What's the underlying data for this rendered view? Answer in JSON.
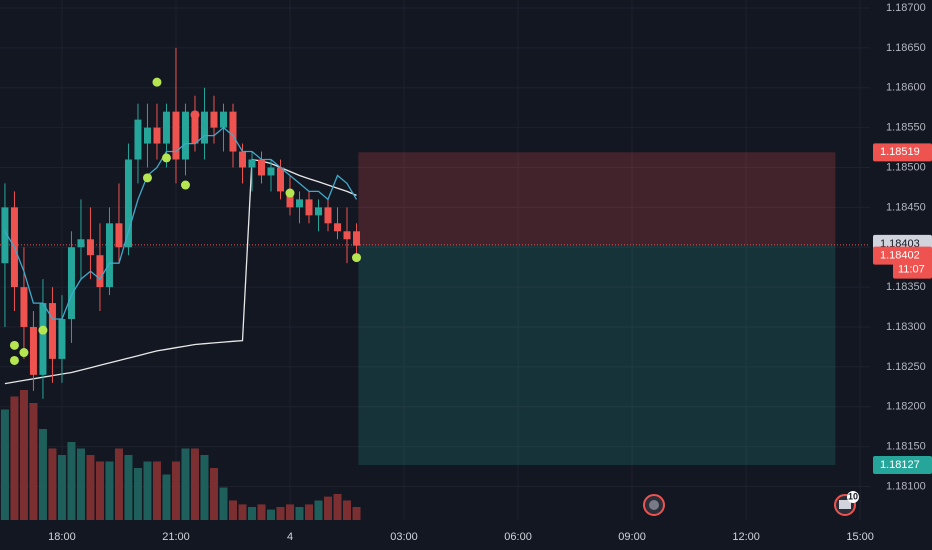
{
  "chart_data": {
    "type": "candlestick",
    "up_color": "#26a69a",
    "down_color": "#ef5350",
    "volume_up_color": "#1f5f5b",
    "volume_down_color": "#7b2f31",
    "x": [
      16.5,
      16.75,
      17,
      17.25,
      17.5,
      17.75,
      18,
      18.25,
      18.5,
      18.75,
      19,
      19.25,
      19.5,
      19.75,
      20,
      20.25,
      20.5,
      20.75,
      21,
      21.25,
      21.5,
      21.75,
      22,
      22.25,
      22.5,
      22.75,
      23,
      23.25,
      23.5,
      23.75,
      24,
      24.25,
      24.5,
      24.75,
      25,
      25.25,
      25.5,
      25.75
    ],
    "open": [
      1.1838,
      1.1845,
      1.1835,
      1.183,
      1.1824,
      1.1833,
      1.1826,
      1.1831,
      1.184,
      1.1841,
      1.1839,
      1.1835,
      1.1843,
      1.184,
      1.1851,
      1.1853,
      1.1855,
      1.1853,
      1.1857,
      1.1851,
      1.1857,
      1.1853,
      1.1857,
      1.1855,
      1.1857,
      1.1852,
      1.185,
      1.1851,
      1.1849,
      1.185,
      1.1847,
      1.1845,
      1.1846,
      1.1844,
      1.1845,
      1.1843,
      1.1842,
      1.1842
    ],
    "high": [
      1.1848,
      1.1847,
      1.184,
      1.1832,
      1.1836,
      1.1835,
      1.1834,
      1.1842,
      1.1846,
      1.1845,
      1.1843,
      1.1845,
      1.1848,
      1.1853,
      1.1858,
      1.1858,
      1.1858,
      1.1858,
      1.1865,
      1.1858,
      1.1859,
      1.186,
      1.1859,
      1.1858,
      1.1858,
      1.1853,
      1.1852,
      1.1852,
      1.1851,
      1.1851,
      1.1849,
      1.1847,
      1.1847,
      1.1846,
      1.1846,
      1.1845,
      1.1845,
      1.1843
    ],
    "low": [
      1.183,
      1.1832,
      1.1826,
      1.1822,
      1.1821,
      1.1823,
      1.1823,
      1.1828,
      1.1836,
      1.1836,
      1.1832,
      1.1834,
      1.1838,
      1.1839,
      1.1848,
      1.185,
      1.1851,
      1.185,
      1.1848,
      1.1849,
      1.1852,
      1.1851,
      1.1853,
      1.1852,
      1.185,
      1.1848,
      1.1847,
      1.1848,
      1.1847,
      1.1846,
      1.1844,
      1.1843,
      1.1843,
      1.1842,
      1.1842,
      1.1841,
      1.1838,
      1.1839
    ],
    "close": [
      1.1845,
      1.1835,
      1.183,
      1.1824,
      1.1833,
      1.1826,
      1.1831,
      1.184,
      1.1841,
      1.1839,
      1.1835,
      1.1843,
      1.184,
      1.1851,
      1.1856,
      1.1855,
      1.1853,
      1.1857,
      1.1851,
      1.1857,
      1.1853,
      1.1857,
      1.1855,
      1.1857,
      1.1852,
      1.185,
      1.1851,
      1.1849,
      1.185,
      1.1847,
      1.1845,
      1.1846,
      1.1844,
      1.1845,
      1.1843,
      1.1842,
      1.1841,
      1.18402
    ],
    "volume": [
      85,
      95,
      100,
      90,
      70,
      55,
      50,
      60,
      55,
      50,
      45,
      45,
      55,
      50,
      40,
      45,
      45,
      35,
      45,
      55,
      55,
      50,
      40,
      25,
      15,
      12,
      10,
      12,
      8,
      10,
      12,
      10,
      12,
      15,
      18,
      20,
      15,
      10
    ],
    "ema": {
      "color": "#3fa9c9",
      "values": [
        1.1842,
        1.184,
        1.1837,
        1.1833,
        1.1833,
        1.1831,
        1.1831,
        1.1834,
        1.1836,
        1.1837,
        1.1836,
        1.1838,
        1.1838,
        1.1842,
        1.1846,
        1.1849,
        1.185,
        1.1852,
        1.1852,
        1.1853,
        1.1853,
        1.1854,
        1.1854,
        1.1855,
        1.1854,
        1.1852,
        1.1852,
        1.1851,
        1.1851,
        1.185,
        1.1849,
        1.1848,
        1.1847,
        1.1847,
        1.1846,
        1.1849,
        1.1848,
        1.1846
      ]
    },
    "vwap": {
      "color": "#e8e8e8",
      "values": [
        1.18229,
        1.18231,
        1.18233,
        1.18235,
        1.18237,
        1.18239,
        1.18241,
        1.18243,
        1.18246,
        1.18249,
        1.18252,
        1.18255,
        1.18258,
        1.18261,
        1.18264,
        1.18267,
        1.1827,
        1.18272,
        1.18274,
        1.18276,
        1.18278,
        1.18279,
        1.1828,
        1.18281,
        1.18282,
        1.18283,
        1.1851,
        1.18508,
        1.18505,
        1.185,
        1.18495,
        1.1849,
        1.18486,
        1.18482,
        1.18478,
        1.18474,
        1.1847,
        1.18465
      ]
    },
    "dots": {
      "x": [
        16.75,
        16.75,
        17,
        17.5,
        20.5,
        20.25,
        20.75,
        21.25,
        21.5,
        24,
        25.75
      ],
      "values": [
        1.18277,
        1.18258,
        1.18268,
        1.18296,
        1.18607,
        1.18487,
        1.18512,
        1.18478,
        1.18566,
        1.18468,
        1.18387
      ],
      "colors": [
        "#b5e550",
        "#b5e550",
        "#b5e550",
        "#b5e550",
        "#b5e550",
        "#b5e550",
        "#b5e550",
        "#b5e550",
        "#ef5350",
        "#b5e550",
        "#b5e550"
      ]
    },
    "position": {
      "x": [
        25.8,
        38.35
      ],
      "entry": 1.18403,
      "stop": 1.18519,
      "target": 1.18127,
      "stop_color": "rgba(239,83,80,0.22)",
      "target_color": "rgba(38,166,154,0.2)"
    },
    "price_labels": [
      {
        "value": 1.18519,
        "label": "1.18519",
        "color": "#ef5350"
      },
      {
        "value": 1.18403,
        "label": "1.18403",
        "color": "#d1d4dc"
      },
      {
        "value": 1.18402,
        "label": "1.18402",
        "color": "#ef5350"
      },
      {
        "value": 1.18127,
        "label": "1.18127",
        "color": "#26a69a"
      }
    ],
    "countdown": "11:07",
    "badge": "10",
    "xlim": [
      16.37,
      39.26
    ],
    "ylim": [
      1.18058,
      1.1871
    ],
    "xticks": [
      {
        "value": 18,
        "label": "18:00"
      },
      {
        "value": 21,
        "label": "21:00"
      },
      {
        "value": 24,
        "label": "4"
      },
      {
        "value": 27,
        "label": "03:00"
      },
      {
        "value": 30,
        "label": "06:00"
      },
      {
        "value": 33,
        "label": "09:00"
      },
      {
        "value": 36,
        "label": "12:00"
      },
      {
        "value": 39,
        "label": "15:00"
      }
    ],
    "yticks": [
      {
        "value": 1.181,
        "label": "1.18100"
      },
      {
        "value": 1.1815,
        "label": "1.18150"
      },
      {
        "value": 1.182,
        "label": "1.18200"
      },
      {
        "value": 1.1825,
        "label": "1.18250"
      },
      {
        "value": 1.183,
        "label": "1.18300"
      },
      {
        "value": 1.1835,
        "label": "1.18350"
      },
      {
        "value": 1.184,
        "label": "1.18400"
      },
      {
        "value": 1.1845,
        "label": "1.18450"
      },
      {
        "value": 1.185,
        "label": "1.18500"
      },
      {
        "value": 1.1855,
        "label": "1.18550"
      },
      {
        "value": 1.186,
        "label": "1.18600"
      },
      {
        "value": 1.1865,
        "label": "1.18650"
      },
      {
        "value": 1.187,
        "label": "1.18700"
      }
    ],
    "grid": true
  }
}
